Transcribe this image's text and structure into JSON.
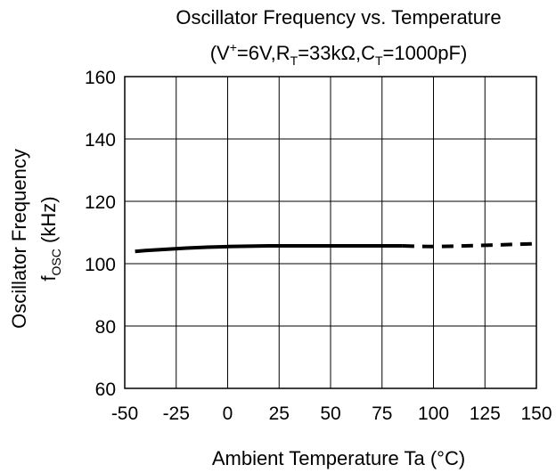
{
  "chart_data": {
    "type": "line",
    "title": "Oscillator Frequency vs. Temperature",
    "subtitle": {
      "p1": "(V",
      "sup": "+",
      "p2": "=6V,R",
      "sub1": "T",
      "p3": "=33kΩ,C",
      "sub2": "T",
      "p4": "=1000pF)"
    },
    "xlabel": "Ambient Temperature  Ta  (°C)",
    "ylabel_line1": "Oscillator Frequency",
    "ylabel_line2": {
      "f": "f",
      "sub": "OSC",
      "rest": "  (kHz)"
    },
    "xlim": [
      -50,
      150
    ],
    "ylim": [
      60,
      160
    ],
    "xticks": [
      "-50",
      "-25",
      "0",
      "25",
      "50",
      "75",
      "100",
      "125",
      "150"
    ],
    "yticks": [
      "60",
      "80",
      "100",
      "120",
      "140",
      "160"
    ],
    "grid": true,
    "series": [
      {
        "style": "solid",
        "x": [
          -45,
          -40,
          -30,
          -20,
          -10,
          0,
          10,
          20,
          30,
          40,
          50,
          60,
          70,
          80,
          85
        ],
        "y": [
          103.9,
          104.2,
          104.6,
          105.0,
          105.3,
          105.5,
          105.6,
          105.7,
          105.7,
          105.7,
          105.7,
          105.7,
          105.7,
          105.7,
          105.7
        ]
      },
      {
        "style": "dashed",
        "x": [
          85,
          90,
          100,
          110,
          120,
          130,
          140,
          150
        ],
        "y": [
          105.7,
          105.6,
          105.5,
          105.6,
          105.8,
          106.0,
          106.2,
          106.4
        ]
      }
    ]
  }
}
